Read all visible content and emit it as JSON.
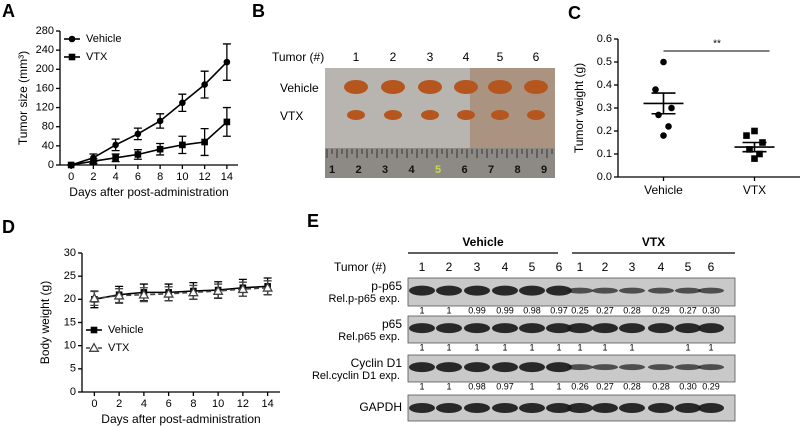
{
  "chart_data": [
    {
      "type": "line",
      "panel_label": "A",
      "ylabel": "Tumor size (mm³)",
      "xlabel": "Days after post-administration",
      "x": [
        0,
        2,
        4,
        6,
        8,
        10,
        12,
        14
      ],
      "xlim": [
        -1,
        15
      ],
      "xticks": [
        0,
        2,
        4,
        6,
        8,
        10,
        12,
        14
      ],
      "ylim": [
        0,
        280
      ],
      "yticks": [
        0,
        40,
        80,
        120,
        160,
        200,
        240,
        280
      ],
      "legend": "upper left",
      "series": [
        {
          "name": "Vehicle",
          "color": "#000000",
          "marker": "circle",
          "line_style": "solid",
          "values": [
            0,
            15,
            42,
            65,
            92,
            130,
            168,
            215
          ],
          "errors": [
            0,
            8,
            12,
            12,
            15,
            18,
            28,
            38
          ]
        },
        {
          "name": "VTX",
          "color": "#000000",
          "marker": "square",
          "line_style": "solid",
          "values": [
            0,
            8,
            15,
            22,
            33,
            42,
            48,
            90
          ],
          "errors": [
            0,
            5,
            8,
            10,
            12,
            18,
            28,
            30
          ]
        }
      ]
    },
    {
      "type": "dot",
      "panel_label": "C",
      "ylabel": "Tumor weight (g)",
      "categories": [
        "Vehicle",
        "VTX"
      ],
      "ylim": [
        0,
        0.6
      ],
      "yticks": [
        {
          "value": 0,
          "label": "0.0"
        },
        0.1,
        0.2,
        0.3,
        0.4,
        0.5,
        0.6
      ],
      "annotation": "**",
      "groups": [
        {
          "color": "#000000",
          "marker": "circle",
          "values": [
            0.5,
            0.38,
            0.3,
            0.27,
            0.22,
            0.18
          ],
          "mean": 0.32,
          "sem": 0.045
        },
        {
          "color": "#000000",
          "marker": "square",
          "values": [
            0.2,
            0.18,
            0.15,
            0.12,
            0.1,
            0.08
          ],
          "mean": 0.13,
          "sem": 0.02
        }
      ]
    },
    {
      "type": "line",
      "panel_label": "D",
      "ylabel": "Body weight (g)",
      "xlabel": "Days after post-administration",
      "x": [
        0,
        2,
        4,
        6,
        8,
        10,
        12,
        14
      ],
      "xlim": [
        -1,
        15
      ],
      "xticks": [
        0,
        2,
        4,
        6,
        8,
        10,
        12,
        14
      ],
      "ylim": [
        0,
        30
      ],
      "yticks": [
        0,
        5,
        10,
        15,
        20,
        25,
        30
      ],
      "legend": "lower left",
      "series": [
        {
          "name": "Vehicle",
          "color": "#000000",
          "marker": "square",
          "line_style": "solid",
          "values": [
            20,
            21,
            21.5,
            21.5,
            21.8,
            22,
            22.5,
            22.8
          ],
          "errors": [
            1.8,
            1.8,
            1.8,
            1.8,
            1.8,
            1.8,
            1.8,
            1.8
          ]
        },
        {
          "name": "VTX",
          "color": "#444444",
          "marker": "triangle",
          "line_style": "dashed",
          "values": [
            20.2,
            20.8,
            21,
            21.2,
            21.5,
            21.8,
            22.2,
            22.5
          ],
          "errors": [
            1.5,
            1.5,
            1.5,
            1.5,
            1.5,
            1.5,
            1.5,
            1.5
          ]
        }
      ]
    }
  ],
  "panel_b": {
    "panel_label": "B",
    "header": "Tumor (#)",
    "columns": [
      "1",
      "2",
      "3",
      "4",
      "5",
      "6"
    ],
    "rows": [
      "Vehicle",
      "VTX"
    ],
    "ruler": [
      "1",
      "2",
      "3",
      "4",
      "5",
      "6",
      "7",
      "8",
      "9"
    ]
  },
  "panel_e": {
    "panel_label": "E",
    "groups": [
      "Vehicle",
      "VTX"
    ],
    "tumor_header": "Tumor (#)",
    "lanes": [
      "1",
      "2",
      "3",
      "4",
      "5",
      "6",
      "1",
      "2",
      "3",
      "4",
      "5",
      "6"
    ],
    "rows": [
      {
        "label": "p-p65",
        "quant_label": "Rel.p-p65 exp.",
        "quant": [
          "1",
          "1",
          "0.99",
          "0.99",
          "0.98",
          "0.97",
          "0.25",
          "0.27",
          "0.28",
          "0.29",
          "0.27",
          "0.30"
        ]
      },
      {
        "label": "p65",
        "quant_label": "Rel.p65 exp.",
        "quant": [
          "1",
          "1",
          "1",
          "1",
          "1",
          "1",
          "1",
          "1",
          "1",
          null,
          "1",
          "1"
        ]
      },
      {
        "label": "Cyclin D1",
        "quant_label": "Rel.cyclin D1 exp.",
        "quant": [
          "1",
          "1",
          "0.98",
          "0.97",
          "1",
          "1",
          "0.26",
          "0.27",
          "0.28",
          "0.28",
          "0.30",
          "0.29"
        ]
      },
      {
        "label": "GAPDH"
      }
    ]
  }
}
